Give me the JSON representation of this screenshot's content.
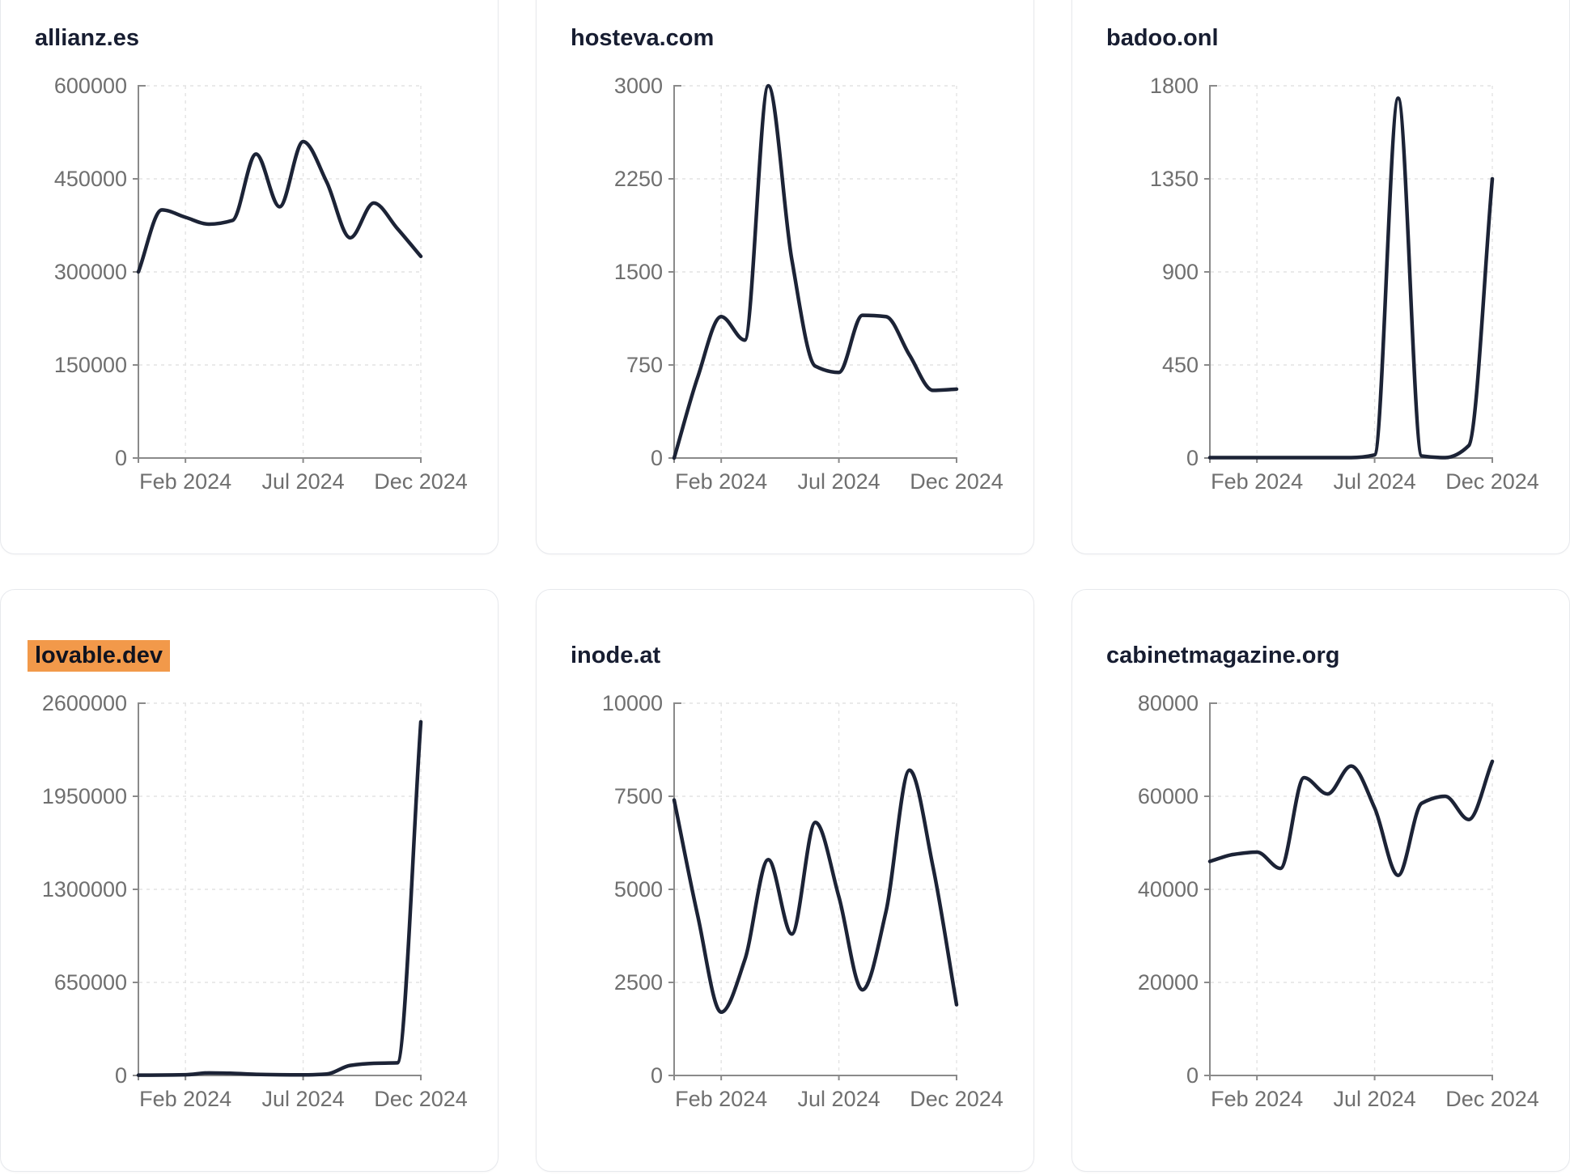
{
  "style": {
    "page_background": "#ffffff",
    "card_background": "#ffffff",
    "card_border": "#e7e9ed",
    "title_color": "#171d31",
    "title_highlight_color": "#F2994A",
    "line_color": "#1c2336",
    "axis_color": "#8a8a8a",
    "tick_label_color": "#6f6f6f",
    "gridline_color": "#e3e3e3"
  },
  "chart_data": [
    {
      "type": "line",
      "title": "allianz.es",
      "title_highlighted": false,
      "grid": true,
      "y_max": 600000,
      "y_ticks": [
        0,
        150000,
        300000,
        450000,
        600000
      ],
      "x_tick_labels": [
        "Feb 2024",
        "Jul 2024",
        "Dec 2024"
      ],
      "x_tick_indices": [
        2,
        7,
        12
      ],
      "values": [
        300000,
        400000,
        388000,
        377000,
        383000,
        490000,
        405000,
        510000,
        445000,
        355000,
        411000,
        370000,
        325000
      ]
    },
    {
      "type": "line",
      "title": "hosteva.com",
      "title_highlighted": false,
      "grid": true,
      "y_max": 3000,
      "y_ticks": [
        0,
        750,
        1500,
        2250,
        3000
      ],
      "x_tick_labels": [
        "Feb 2024",
        "Jul 2024",
        "Dec 2024"
      ],
      "x_tick_indices": [
        2,
        7,
        12
      ],
      "values": [
        0,
        650,
        1140,
        950,
        3000,
        1600,
        740,
        690,
        1150,
        1140,
        830,
        545,
        555
      ]
    },
    {
      "type": "line",
      "title": "badoo.onl",
      "title_highlighted": false,
      "grid": true,
      "y_max": 1800,
      "y_ticks": [
        0,
        450,
        900,
        1350,
        1800
      ],
      "x_tick_labels": [
        "Feb 2024",
        "Jul 2024",
        "Dec 2024"
      ],
      "x_tick_indices": [
        2,
        7,
        12
      ],
      "values": [
        2,
        2,
        2,
        2,
        2,
        2,
        2,
        15,
        1740,
        10,
        2,
        60,
        1350
      ]
    },
    {
      "type": "line",
      "title": "lovable.dev",
      "title_highlighted": true,
      "grid": true,
      "y_max": 2600000,
      "y_ticks": [
        0,
        650000,
        1300000,
        1950000,
        2600000
      ],
      "x_tick_labels": [
        "Feb 2024",
        "Jul 2024",
        "Dec 2024"
      ],
      "x_tick_indices": [
        2,
        7,
        12
      ],
      "values": [
        2000,
        3000,
        5000,
        18000,
        15000,
        8000,
        5000,
        4000,
        10000,
        70000,
        85000,
        88000,
        2470000
      ]
    },
    {
      "type": "line",
      "title": "inode.at",
      "title_highlighted": false,
      "grid": true,
      "y_max": 10000,
      "y_ticks": [
        0,
        2500,
        5000,
        7500,
        10000
      ],
      "x_tick_labels": [
        "Feb 2024",
        "Jul 2024",
        "Dec 2024"
      ],
      "x_tick_indices": [
        2,
        7,
        12
      ],
      "values": [
        7400,
        4300,
        1700,
        3100,
        5800,
        3800,
        6800,
        4800,
        2300,
        4400,
        8200,
        5600,
        1900
      ]
    },
    {
      "type": "line",
      "title": "cabinetmagazine.org",
      "title_highlighted": false,
      "grid": true,
      "y_max": 80000,
      "y_ticks": [
        0,
        20000,
        40000,
        60000,
        80000
      ],
      "x_tick_labels": [
        "Feb 2024",
        "Jul 2024",
        "Dec 2024"
      ],
      "x_tick_indices": [
        2,
        7,
        12
      ],
      "values": [
        46000,
        47500,
        48000,
        44500,
        64000,
        60500,
        66500,
        57500,
        43000,
        58500,
        60000,
        55000,
        67500
      ]
    }
  ]
}
